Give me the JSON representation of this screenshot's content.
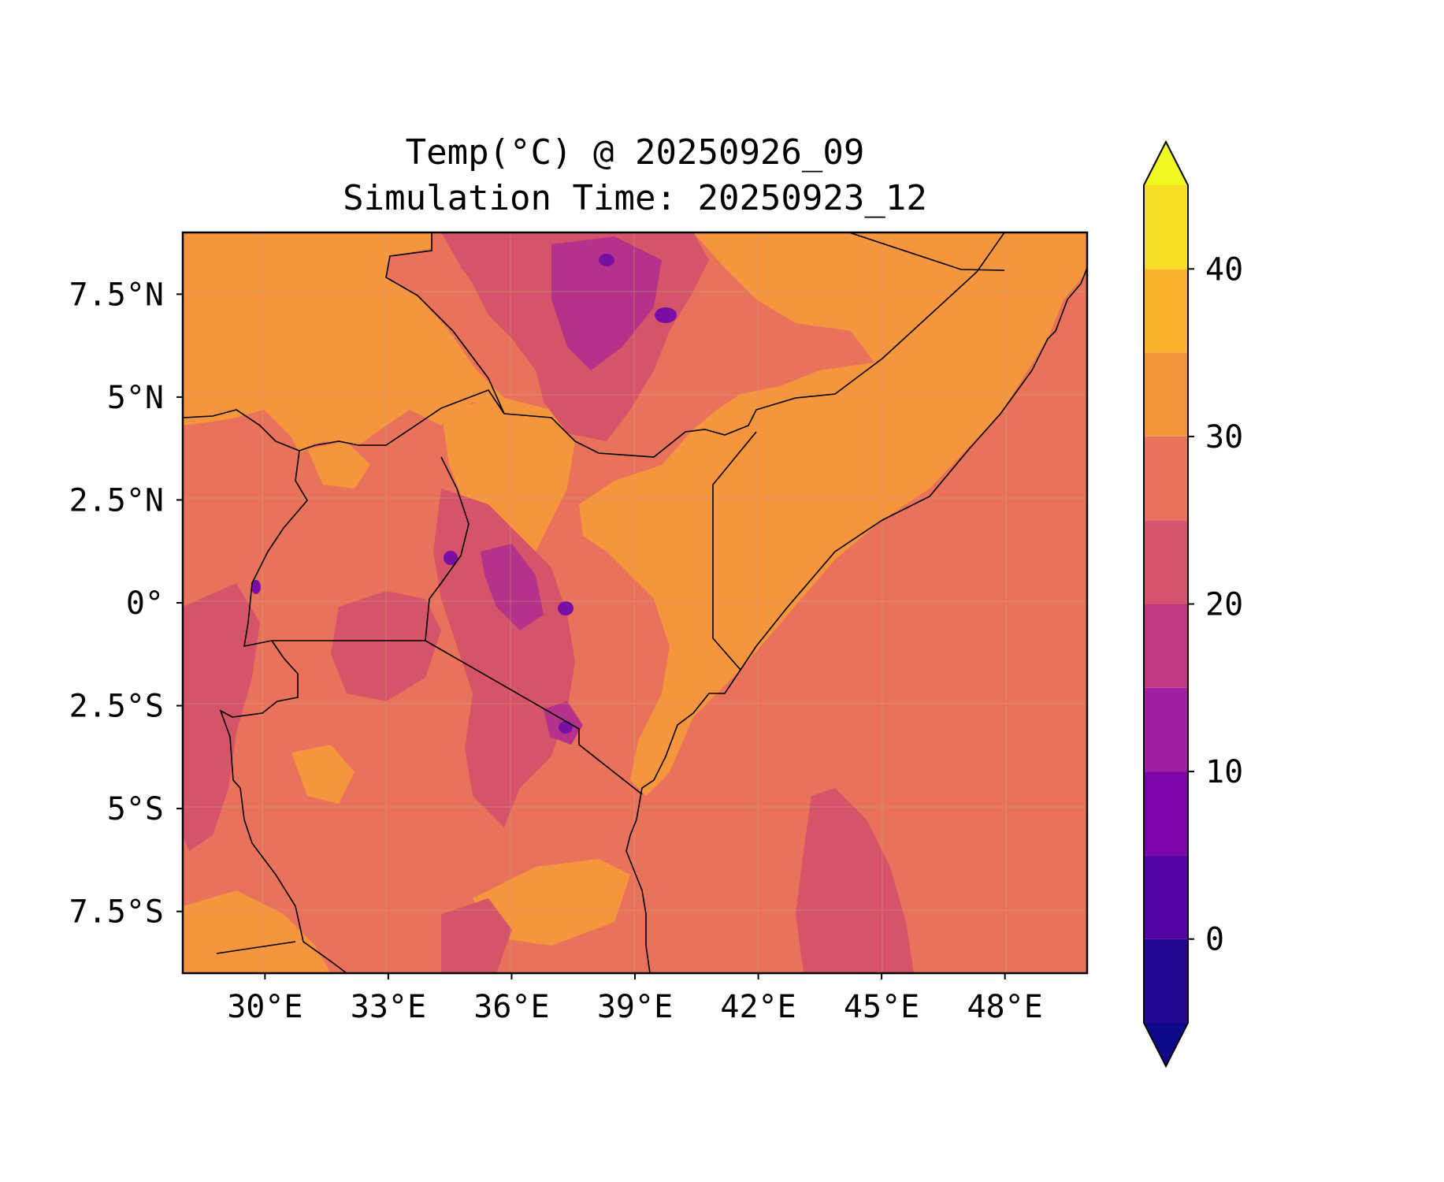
{
  "title": {
    "line1": "Temp(°C) @ 20250926_09",
    "line2": "Simulation Time: 20250923_12"
  },
  "map": {
    "x_ticks": [
      "30°E",
      "33°E",
      "36°E",
      "39°E",
      "42°E",
      "45°E",
      "48°E"
    ],
    "x_tick_values": [
      30,
      33,
      36,
      39,
      42,
      45,
      48
    ],
    "y_ticks": [
      "7.5°N",
      "5°N",
      "2.5°N",
      "0°",
      "2.5°S",
      "5°S",
      "7.5°S"
    ],
    "y_tick_values": [
      7.5,
      5,
      2.5,
      0,
      -2.5,
      -5,
      -7.5
    ],
    "lon_range": [
      28,
      50
    ],
    "lat_range": [
      -9,
      9
    ],
    "field_colors": {
      "ocean": "#e8735a",
      "hot_lowland": "#f5963f",
      "highland": "#d65469",
      "mountain": "#b5328a",
      "peak": "#7a0fa6"
    }
  },
  "colorbar": {
    "tick_labels": [
      "0",
      "10",
      "20",
      "30",
      "40"
    ],
    "tick_values": [
      0,
      10,
      20,
      30,
      40
    ],
    "levels": [
      -5,
      0,
      5,
      10,
      15,
      20,
      25,
      30,
      35,
      40,
      45
    ],
    "colors": [
      "#0d0887",
      "#220690",
      "#5302a3",
      "#7e03a8",
      "#a01fa0",
      "#c03a83",
      "#d5546e",
      "#e8735a",
      "#f5963f",
      "#fdb32f",
      "#f6df25",
      "#f0f921"
    ],
    "extend": "both"
  }
}
